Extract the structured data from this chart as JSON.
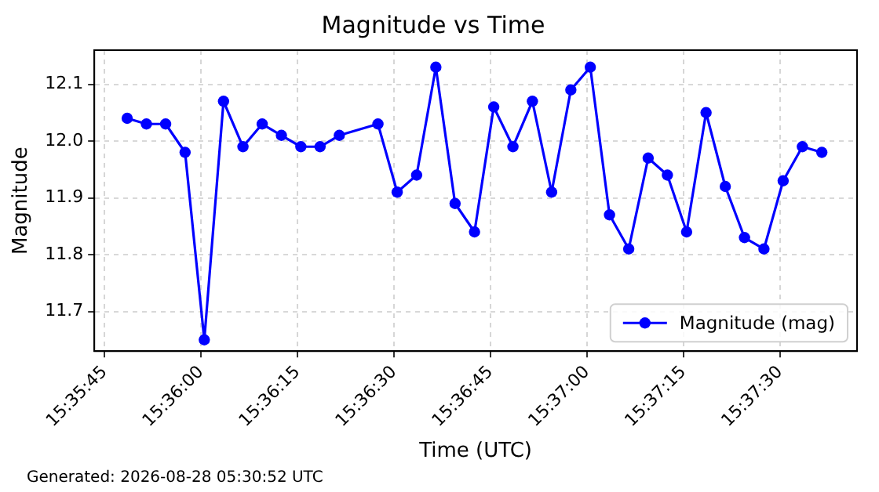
{
  "chart_data": {
    "type": "line",
    "title": "Magnitude vs Time",
    "xlabel": "Time (UTC)",
    "ylabel": "Magnitude",
    "annotations": [
      "Generated: 2026-08-28 05:30:52 UTC"
    ],
    "x": [
      15.59681,
      15.59764,
      15.59847,
      15.59931,
      15.60014,
      15.60097,
      15.60181,
      15.60264,
      15.60347,
      15.60431,
      15.60514,
      15.60597,
      15.60764,
      15.60847,
      15.60931,
      15.61014,
      15.61097,
      15.61181,
      15.61264,
      15.61347,
      15.61431,
      15.61514,
      15.61597,
      15.61681,
      15.61764,
      15.61847,
      15.61931,
      15.62014,
      15.62097,
      15.62181,
      15.62264,
      15.62347,
      15.62431,
      15.62514,
      15.62597,
      15.62681
    ],
    "series": [
      {
        "name": "Magnitude (mag)",
        "color": "#0000ff",
        "values": [
          12.04,
          12.03,
          12.03,
          11.98,
          11.65,
          12.07,
          11.99,
          12.03,
          12.01,
          11.99,
          11.99,
          12.01,
          12.03,
          11.91,
          11.94,
          12.13,
          11.89,
          11.84,
          12.06,
          11.99,
          12.07,
          11.91,
          12.09,
          12.13,
          11.87,
          11.81,
          11.97,
          11.94,
          11.84,
          12.05,
          11.92,
          11.83,
          11.81,
          11.93,
          11.99,
          11.98
        ]
      }
    ],
    "xlim": [
      15.59539,
      15.62833
    ],
    "xticks": [
      {
        "value": 15.595833,
        "label": "15:35:45"
      },
      {
        "value": 15.6,
        "label": "15:36:00"
      },
      {
        "value": 15.604167,
        "label": "15:36:15"
      },
      {
        "value": 15.608333,
        "label": "15:36:30"
      },
      {
        "value": 15.6125,
        "label": "15:36:45"
      },
      {
        "value": 15.616667,
        "label": "15:37:00"
      },
      {
        "value": 15.620833,
        "label": "15:37:15"
      },
      {
        "value": 15.625,
        "label": "15:37:30"
      }
    ],
    "ylim": [
      11.63,
      12.16
    ],
    "yticks": [
      {
        "value": 11.7,
        "label": "11.7"
      },
      {
        "value": 11.8,
        "label": "11.8"
      },
      {
        "value": 11.9,
        "label": "11.9"
      },
      {
        "value": 12.0,
        "label": "12.0"
      },
      {
        "value": 12.1,
        "label": "12.1"
      }
    ],
    "grid": true,
    "legend": "bottom right",
    "marker": "circle",
    "line_style": "solid"
  }
}
